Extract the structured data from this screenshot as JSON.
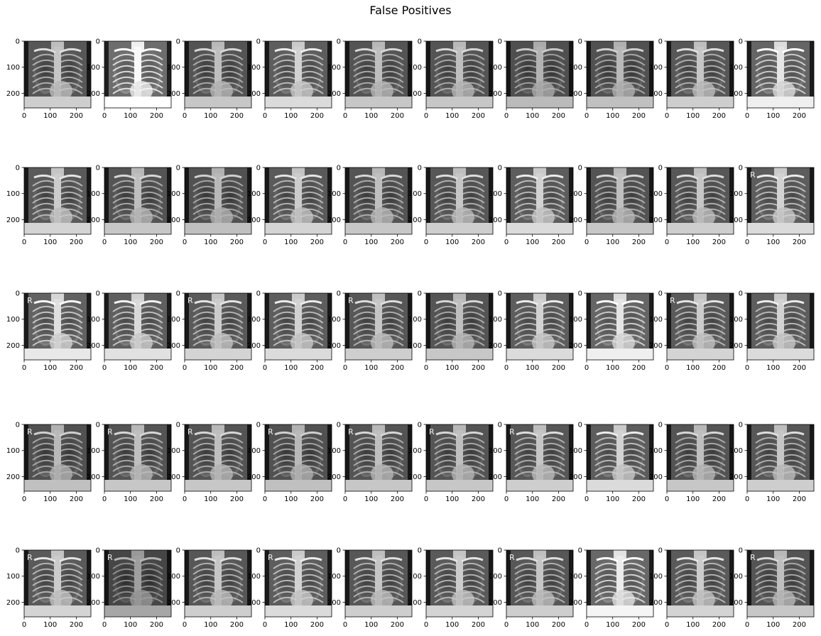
{
  "figure": {
    "title": "False Positives"
  },
  "grid": {
    "rows": 5,
    "cols": 10
  },
  "axes": {
    "x_ticks": [
      "0",
      "100",
      "200"
    ],
    "y_ticks": [
      "0",
      "100",
      "200"
    ],
    "image_extent": [
      0,
      256
    ]
  },
  "colors": {
    "background": "#ffffff",
    "axis_line": "#000000",
    "text": "#000000"
  },
  "images": [
    {
      "label": "",
      "brightness": 0.62,
      "contrast": 1.1
    },
    {
      "label": "",
      "brightness": 0.78,
      "contrast": 0.95
    },
    {
      "label": "",
      "brightness": 0.6,
      "contrast": 1.1
    },
    {
      "label": "",
      "brightness": 0.66,
      "contrast": 1.0
    },
    {
      "label": "",
      "brightness": 0.6,
      "contrast": 1.05
    },
    {
      "label": "",
      "brightness": 0.6,
      "contrast": 1.05
    },
    {
      "label": "",
      "brightness": 0.56,
      "contrast": 1.15
    },
    {
      "label": "",
      "brightness": 0.58,
      "contrast": 1.15
    },
    {
      "label": "",
      "brightness": 0.62,
      "contrast": 1.05
    },
    {
      "label": "",
      "brightness": 0.72,
      "contrast": 0.95
    },
    {
      "label": "",
      "brightness": 0.64,
      "contrast": 1.1
    },
    {
      "label": "",
      "brightness": 0.6,
      "contrast": 1.1
    },
    {
      "label": "",
      "brightness": 0.58,
      "contrast": 1.15
    },
    {
      "label": "",
      "brightness": 0.64,
      "contrast": 1.05
    },
    {
      "label": "",
      "brightness": 0.6,
      "contrast": 1.1
    },
    {
      "label": "",
      "brightness": 0.62,
      "contrast": 1.05
    },
    {
      "label": "",
      "brightness": 0.66,
      "contrast": 1.0
    },
    {
      "label": "",
      "brightness": 0.6,
      "contrast": 1.05
    },
    {
      "label": "",
      "brightness": 0.62,
      "contrast": 1.05
    },
    {
      "label": "R",
      "brightness": 0.66,
      "contrast": 1.0
    },
    {
      "label": "R",
      "brightness": 0.7,
      "contrast": 1.0
    },
    {
      "label": "",
      "brightness": 0.68,
      "contrast": 1.0
    },
    {
      "label": "R",
      "brightness": 0.64,
      "contrast": 1.05
    },
    {
      "label": "",
      "brightness": 0.66,
      "contrast": 1.05
    },
    {
      "label": "R",
      "brightness": 0.62,
      "contrast": 1.05
    },
    {
      "label": "",
      "brightness": 0.6,
      "contrast": 1.1
    },
    {
      "label": "",
      "brightness": 0.66,
      "contrast": 1.0
    },
    {
      "label": "",
      "brightness": 0.72,
      "contrast": 0.95
    },
    {
      "label": "R",
      "brightness": 0.64,
      "contrast": 1.05
    },
    {
      "label": "",
      "brightness": 0.66,
      "contrast": 1.0
    },
    {
      "label": "R",
      "brightness": 0.58,
      "contrast": 1.15
    },
    {
      "label": "R",
      "brightness": 0.6,
      "contrast": 1.1
    },
    {
      "label": "R",
      "brightness": 0.6,
      "contrast": 1.1
    },
    {
      "label": "R",
      "brightness": 0.58,
      "contrast": 1.15
    },
    {
      "label": "R",
      "brightness": 0.6,
      "contrast": 1.1
    },
    {
      "label": "R",
      "brightness": 0.6,
      "contrast": 1.1
    },
    {
      "label": "R",
      "brightness": 0.62,
      "contrast": 1.05
    },
    {
      "label": "",
      "brightness": 0.66,
      "contrast": 1.0
    },
    {
      "label": "",
      "brightness": 0.6,
      "contrast": 1.1
    },
    {
      "label": "",
      "brightness": 0.62,
      "contrast": 1.05
    },
    {
      "label": "R",
      "brightness": 0.64,
      "contrast": 1.05
    },
    {
      "label": "R",
      "brightness": 0.5,
      "contrast": 1.25
    },
    {
      "label": "",
      "brightness": 0.62,
      "contrast": 1.05
    },
    {
      "label": "R",
      "brightness": 0.66,
      "contrast": 1.0
    },
    {
      "label": "",
      "brightness": 0.62,
      "contrast": 1.05
    },
    {
      "label": "",
      "brightness": 0.64,
      "contrast": 1.05
    },
    {
      "label": "R",
      "brightness": 0.62,
      "contrast": 1.05
    },
    {
      "label": "",
      "brightness": 0.74,
      "contrast": 0.95
    },
    {
      "label": "",
      "brightness": 0.64,
      "contrast": 1.05
    },
    {
      "label": "R",
      "brightness": 0.6,
      "contrast": 1.1
    }
  ]
}
